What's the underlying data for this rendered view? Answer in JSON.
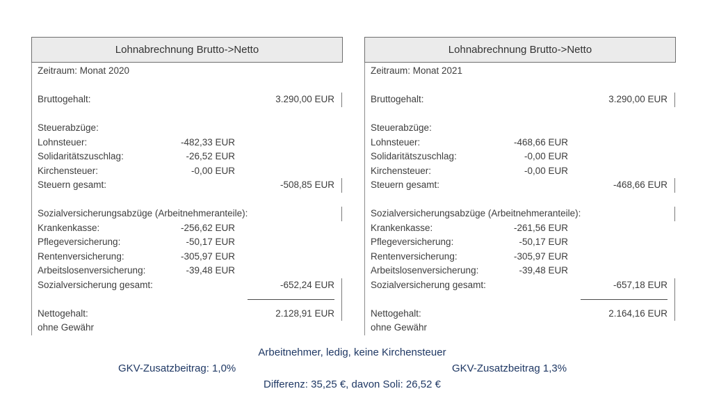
{
  "colors": {
    "navy_text": "#1f3864",
    "panel_header_bg": "#ebebeb",
    "panel_border": "#6e6e6e",
    "body_text": "#3d3d3d",
    "tick_gray": "#7a7a7a"
  },
  "panels": [
    {
      "title": "Lohnabrechnung Brutto->Netto",
      "rows": [
        {
          "label": "Zeitraum: Monat 2020"
        },
        {
          "blank": true
        },
        {
          "label": "Bruttogehalt:",
          "total": "3.290,00 EUR",
          "tick": true
        },
        {
          "blank": true
        },
        {
          "label": "Steuerabzüge:"
        },
        {
          "label": "Lohnsteuer:",
          "mid": "-482,33 EUR"
        },
        {
          "label": "Solidaritätszuschlag:",
          "mid": "-26,52 EUR"
        },
        {
          "label": "Kirchensteuer:",
          "mid": "-0,00 EUR"
        },
        {
          "label": "Steuern gesamt:",
          "total": "-508,85 EUR",
          "tick": true
        },
        {
          "blank": true
        },
        {
          "label": "Sozialversicherungsabzüge (Arbeitnehmeranteile):",
          "tick": true
        },
        {
          "label": "Krankenkasse:",
          "mid": "-256,62 EUR"
        },
        {
          "label": "Pflegeversicherung:",
          "mid": "-50,17 EUR"
        },
        {
          "label": "Rentenversicherung:",
          "mid": "-305,97 EUR"
        },
        {
          "label": "Arbeitslosenversicherung:",
          "mid": "-39,48 EUR"
        },
        {
          "label": "Sozialversicherung gesamt:",
          "total": "-652,24 EUR",
          "tick": true
        },
        {
          "sumline": true,
          "tick": true
        },
        {
          "label": "Nettogehalt:",
          "total": "2.128,91 EUR",
          "tick": true
        },
        {
          "label": "ohne Gewähr"
        }
      ]
    },
    {
      "title": "Lohnabrechnung Brutto->Netto",
      "rows": [
        {
          "label": "Zeitraum: Monat 2021"
        },
        {
          "blank": true
        },
        {
          "label": "Bruttogehalt:",
          "total": "3.290,00 EUR",
          "tick": true
        },
        {
          "blank": true
        },
        {
          "label": "Steuerabzüge:"
        },
        {
          "label": "Lohnsteuer:",
          "mid": "-468,66 EUR"
        },
        {
          "label": "Solidaritätszuschlag:",
          "mid": "-0,00 EUR"
        },
        {
          "label": "Kirchensteuer:",
          "mid": "-0,00 EUR"
        },
        {
          "label": "Steuern gesamt:",
          "total": "-468,66 EUR",
          "tick": true
        },
        {
          "blank": true
        },
        {
          "label": "Sozialversicherungsabzüge (Arbeitnehmeranteile):",
          "tick": true
        },
        {
          "label": "Krankenkasse:",
          "mid": "-261,56 EUR"
        },
        {
          "label": "Pflegeversicherung:",
          "mid": "-50,17 EUR"
        },
        {
          "label": "Rentenversicherung:",
          "mid": "-305,97 EUR"
        },
        {
          "label": "Arbeitslosenversicherung:",
          "mid": "-39,48 EUR"
        },
        {
          "label": "Sozialversicherung gesamt:",
          "total": "-657,18 EUR",
          "tick": true
        },
        {
          "sumline": true,
          "tick": true
        },
        {
          "label": "Nettogehalt:",
          "total": "2.164,16 EUR",
          "tick": true
        },
        {
          "label": "ohne Gewähr"
        }
      ]
    }
  ],
  "footer": {
    "line1": "Arbeitnehmer, ledig, keine Kirchensteuer",
    "line2_left": "GKV-Zusatzbeitrag: 1,0%",
    "line2_right": "GKV-Zusatzbeitrag 1,3%",
    "line3": "Differenz: 35,25 €, davon Soli: 26,52 €"
  }
}
